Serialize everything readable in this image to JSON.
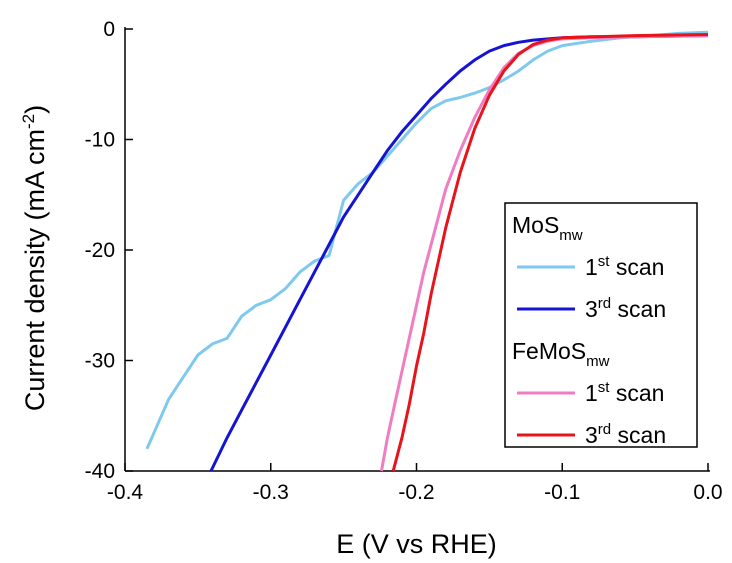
{
  "chart_data": {
    "type": "line",
    "xlabel": "E (V vs RHE)",
    "ylabel": [
      "Current density (mA cm",
      "-2",
      ")"
    ],
    "xlim": [
      -0.4,
      0
    ],
    "xticks": [
      -0.4,
      -0.3,
      -0.2,
      -0.1,
      {
        "value": 0,
        "label": "0.0"
      }
    ],
    "ylim": [
      -40,
      0
    ],
    "yticks": [
      -40,
      -30,
      -20,
      -10,
      0
    ],
    "groups": [
      {
        "title": [
          "MoS",
          "mw"
        ],
        "series": [
          {
            "name": [
              "1",
              "st",
              " scan"
            ],
            "color": "#7fc9ef",
            "x": [
              -0.385,
              -0.38,
              -0.375,
              -0.37,
              -0.36,
              -0.35,
              -0.34,
              -0.33,
              -0.32,
              -0.31,
              -0.3,
              -0.29,
              -0.28,
              -0.27,
              -0.26,
              -0.255,
              -0.25,
              -0.24,
              -0.23,
              -0.22,
              -0.21,
              -0.2,
              -0.19,
              -0.18,
              -0.17,
              -0.16,
              -0.15,
              -0.14,
              -0.13,
              -0.12,
              -0.11,
              -0.1,
              -0.08,
              -0.06,
              -0.04,
              -0.02,
              0
            ],
            "values": [
              -38,
              -36.5,
              -35,
              -33.5,
              -31.5,
              -29.5,
              -28.5,
              -28,
              -26,
              -25,
              -24.5,
              -23.5,
              -22,
              -21,
              -20.5,
              -18,
              -15.5,
              -14,
              -13,
              -11.5,
              -10,
              -8.5,
              -7.2,
              -6.5,
              -6.2,
              -5.8,
              -5.3,
              -4.6,
              -3.8,
              -2.8,
              -2,
              -1.5,
              -1.1,
              -0.8,
              -0.6,
              -0.4,
              -0.3
            ]
          },
          {
            "name": [
              "3",
              "rd",
              " scan"
            ],
            "color": "#1414d2",
            "x": [
              -0.341,
              -0.33,
              -0.32,
              -0.31,
              -0.3,
              -0.29,
              -0.28,
              -0.27,
              -0.26,
              -0.25,
              -0.24,
              -0.23,
              -0.22,
              -0.21,
              -0.2,
              -0.19,
              -0.18,
              -0.17,
              -0.16,
              -0.15,
              -0.14,
              -0.13,
              -0.12,
              -0.1,
              -0.08,
              -0.05,
              0
            ],
            "values": [
              -40,
              -37,
              -34.5,
              -32,
              -29.5,
              -27,
              -24.5,
              -22,
              -19.5,
              -17,
              -15,
              -13,
              -11,
              -9.3,
              -7.8,
              -6.3,
              -5,
              -3.8,
              -2.8,
              -2,
              -1.5,
              -1.2,
              -1,
              -0.8,
              -0.7,
              -0.7,
              -0.6
            ]
          }
        ]
      },
      {
        "title": [
          "FeMoS",
          "mw"
        ],
        "series": [
          {
            "name": [
              "1",
              "st",
              " scan"
            ],
            "color": "#f07dc2",
            "x": [
              -0.224,
              -0.22,
              -0.215,
              -0.21,
              -0.205,
              -0.2,
              -0.195,
              -0.19,
              -0.185,
              -0.18,
              -0.17,
              -0.16,
              -0.15,
              -0.14,
              -0.13,
              -0.12,
              -0.11,
              -0.1,
              -0.08,
              -0.05,
              0
            ],
            "values": [
              -40,
              -37,
              -34,
              -31,
              -28,
              -25,
              -22,
              -19.5,
              -17,
              -14.5,
              -11,
              -8,
              -5.5,
              -3.5,
              -2.2,
              -1.5,
              -1.1,
              -0.9,
              -0.8,
              -0.7,
              -0.6
            ]
          },
          {
            "name": [
              "3",
              "rd",
              " scan"
            ],
            "color": "#e8141c",
            "x": [
              -0.216,
              -0.21,
              -0.205,
              -0.2,
              -0.195,
              -0.19,
              -0.185,
              -0.18,
              -0.17,
              -0.16,
              -0.15,
              -0.14,
              -0.13,
              -0.12,
              -0.11,
              -0.1,
              -0.05,
              0
            ],
            "values": [
              -40,
              -37,
              -34,
              -30.5,
              -27.5,
              -24,
              -21,
              -18,
              -13,
              -9,
              -6,
              -3.8,
              -2.3,
              -1.4,
              -1,
              -0.8,
              -0.6,
              -0.5
            ]
          }
        ]
      }
    ]
  }
}
